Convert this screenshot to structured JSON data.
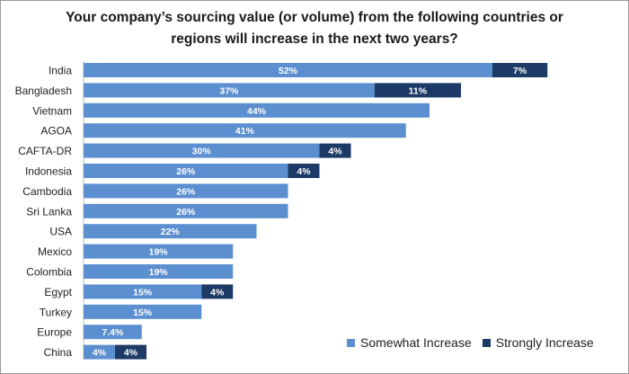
{
  "chart_data": {
    "type": "bar",
    "orientation": "horizontal",
    "stacked": true,
    "title_lines": [
      "Your company’s sourcing value (or volume) from the following countries or",
      "regions will increase in the next two years?"
    ],
    "categories": [
      "India",
      "Bangladesh",
      "Vietnam",
      "AGOA",
      "CAFTA-DR",
      "Indonesia",
      "Cambodia",
      "Sri Lanka",
      "USA",
      "Mexico",
      "Colombia",
      "Egypt",
      "Turkey",
      "Europe",
      "China"
    ],
    "series": [
      {
        "name": "Somewhat Increase",
        "color": "#5b8fd0",
        "values": [
          52,
          37,
          44,
          41,
          30,
          26,
          26,
          26,
          22,
          19,
          19,
          15,
          15,
          7.4,
          4
        ],
        "labels": [
          "52%",
          "37%",
          "44%",
          "41%",
          "30%",
          "26%",
          "26%",
          "26%",
          "22%",
          "19%",
          "19%",
          "15%",
          "15%",
          "7.4%",
          "4%"
        ]
      },
      {
        "name": "Strongly Increase",
        "color": "#1d3a66",
        "values": [
          7,
          11,
          null,
          null,
          4,
          4,
          null,
          null,
          null,
          null,
          null,
          4,
          null,
          null,
          4
        ],
        "labels": [
          "7%",
          "11%",
          "",
          "",
          "4%",
          "4%",
          "",
          "",
          "",
          "",
          "",
          "4%",
          "",
          "",
          "4%"
        ]
      }
    ],
    "legend_position": "bottom-right",
    "grid": false
  }
}
